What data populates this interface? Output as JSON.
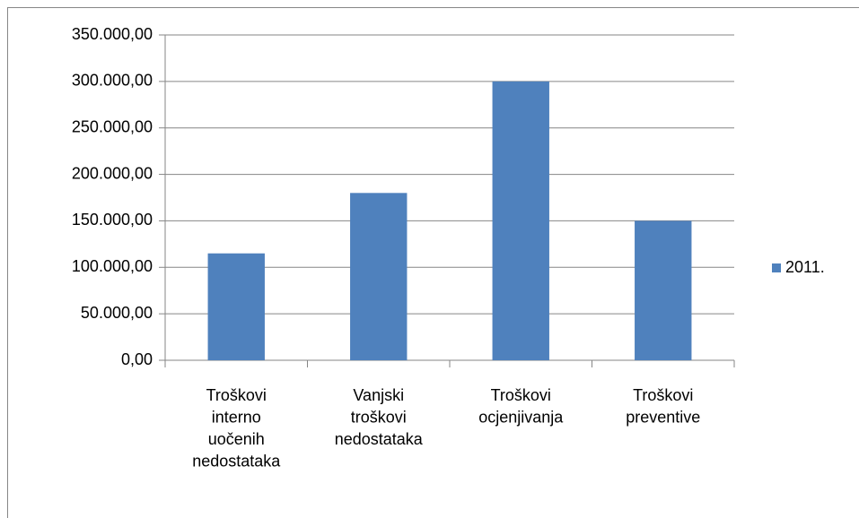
{
  "chart_data": {
    "type": "bar",
    "categories": [
      "Troškovi interno uočenih nedostataka",
      "Vanjski troškovi nedostataka",
      "Troškovi ocjenjivanja",
      "Troškovi preventive"
    ],
    "series": [
      {
        "name": "2011.",
        "color": "#4f81bd",
        "values": [
          115000,
          180000,
          300000,
          150000
        ]
      }
    ],
    "ylim": [
      0,
      350000
    ],
    "yticks": [
      {
        "value": 0,
        "label": "0,00"
      },
      {
        "value": 50000,
        "label": "50.000,00"
      },
      {
        "value": 100000,
        "label": "100.000,00"
      },
      {
        "value": 150000,
        "label": "150.000,00"
      },
      {
        "value": 200000,
        "label": "200.000,00"
      },
      {
        "value": 250000,
        "label": "250.000,00"
      },
      {
        "value": 300000,
        "label": "300.000,00"
      },
      {
        "value": 350000,
        "label": "350.000,00"
      }
    ],
    "grid": true,
    "legend": "right"
  }
}
